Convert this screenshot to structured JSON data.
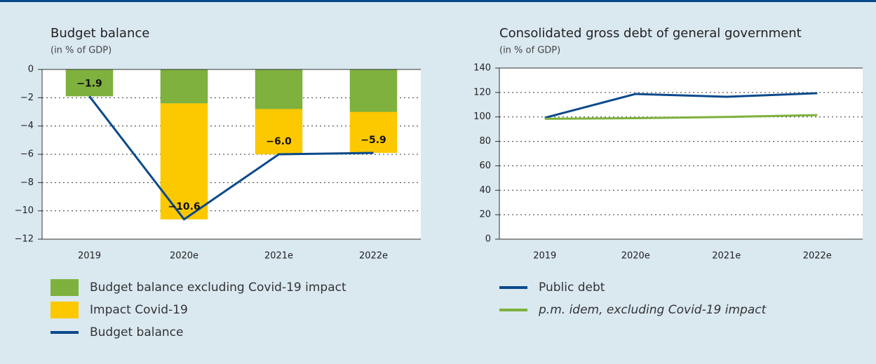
{
  "chart_data": [
    {
      "type": "bar",
      "title": "Budget balance",
      "subtitle": "(in % of GDP)",
      "categories": [
        "2019",
        "2020e",
        "2021e",
        "2022e"
      ],
      "series": [
        {
          "name": "Budget balance excluding Covid-19 impact",
          "color": "#7eb13d",
          "values": [
            -1.9,
            -2.4,
            -2.8,
            -3.0
          ]
        },
        {
          "name": "Impact Covid-19",
          "color": "#fcc800",
          "values": [
            0,
            -8.2,
            -3.2,
            -2.9
          ]
        },
        {
          "name": "Budget balance",
          "type": "line",
          "color": "#0b4a8b",
          "values": [
            -1.9,
            -10.6,
            -6.0,
            -5.9
          ],
          "value_labels": [
            "−1.9",
            "−10.6",
            "−6.0",
            "−5.9"
          ]
        }
      ],
      "ylim": [
        -12,
        0
      ],
      "yticks": [
        0,
        {
          "value": -2,
          "label": "−2"
        },
        {
          "value": -4,
          "label": "−4"
        },
        {
          "value": -6,
          "label": "−6"
        },
        {
          "value": -8,
          "label": "−8"
        },
        {
          "value": -10,
          "label": "−10"
        },
        {
          "value": -12,
          "label": "−12"
        }
      ],
      "grid": true
    },
    {
      "type": "line",
      "title": "Consolidated gross debt of general government",
      "subtitle": "(in % of GDP)",
      "categories": [
        "2019",
        "2020e",
        "2021e",
        "2022e"
      ],
      "series": [
        {
          "name": "Public debt",
          "color": "#0b4a8b",
          "values": [
            99.3,
            118.8,
            116.5,
            119.4
          ]
        },
        {
          "name": "p.m. idem, excluding Covid-19 impact",
          "color": "#7eb13d",
          "values": [
            98.5,
            99.0,
            100.0,
            101.5
          ]
        }
      ],
      "ylim": [
        0,
        140
      ],
      "yticks": [
        0,
        20,
        40,
        60,
        80,
        100,
        120,
        140
      ],
      "grid": true
    }
  ]
}
